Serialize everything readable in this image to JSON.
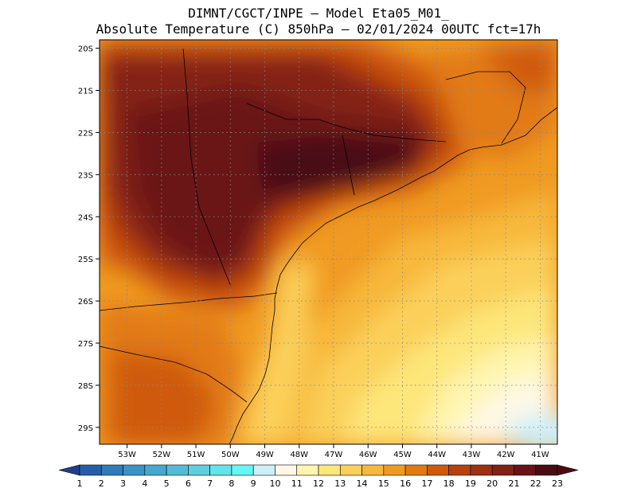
{
  "header": {
    "line1": "DIMNT/CGCT/INPE –  Model Eta05_M01_",
    "line2": "Absolute Temperature (C) 850hPa –  02/01/2024 00UTC fct=17h"
  },
  "map": {
    "lon_range": [
      -53.8,
      -40.5
    ],
    "lat_range": [
      -29.4,
      -19.8
    ],
    "lat_ticks": [
      "20S",
      "21S",
      "22S",
      "23S",
      "24S",
      "25S",
      "26S",
      "27S",
      "28S",
      "29S"
    ],
    "lat_values": [
      -20,
      -21,
      -22,
      -23,
      -24,
      -25,
      -26,
      -27,
      -28,
      -29
    ],
    "lon_ticks": [
      "53W",
      "52W",
      "51W",
      "50W",
      "49W",
      "48W",
      "47W",
      "46W",
      "45W",
      "44W",
      "43W",
      "42W",
      "41W"
    ],
    "lon_values": [
      -53,
      -52,
      -51,
      -50,
      -49,
      -48,
      -47,
      -46,
      -45,
      -44,
      -43,
      -42,
      -41
    ],
    "grid": "dotted"
  },
  "colorbar": {
    "labels": [
      "1",
      "2",
      "3",
      "4",
      "5",
      "6",
      "7",
      "8",
      "9",
      "10",
      "11",
      "12",
      "13",
      "14",
      "15",
      "16",
      "17",
      "18",
      "19",
      "20",
      "21",
      "22",
      "23"
    ],
    "colors": [
      "#1f3f8f",
      "#255ea8",
      "#2f7cbb",
      "#3a93c6",
      "#45a8cf",
      "#52bcd7",
      "#5fcfe0",
      "#63e3ec",
      "#66f5f6",
      "#cdeffa",
      "#fff8e6",
      "#fff5b0",
      "#fde67a",
      "#fbd05a",
      "#f7b83b",
      "#f09a22",
      "#e27a12",
      "#cf5a0a",
      "#b8410c",
      "#9e2f10",
      "#842014",
      "#6b1218",
      "#4a0c12"
    ]
  }
}
